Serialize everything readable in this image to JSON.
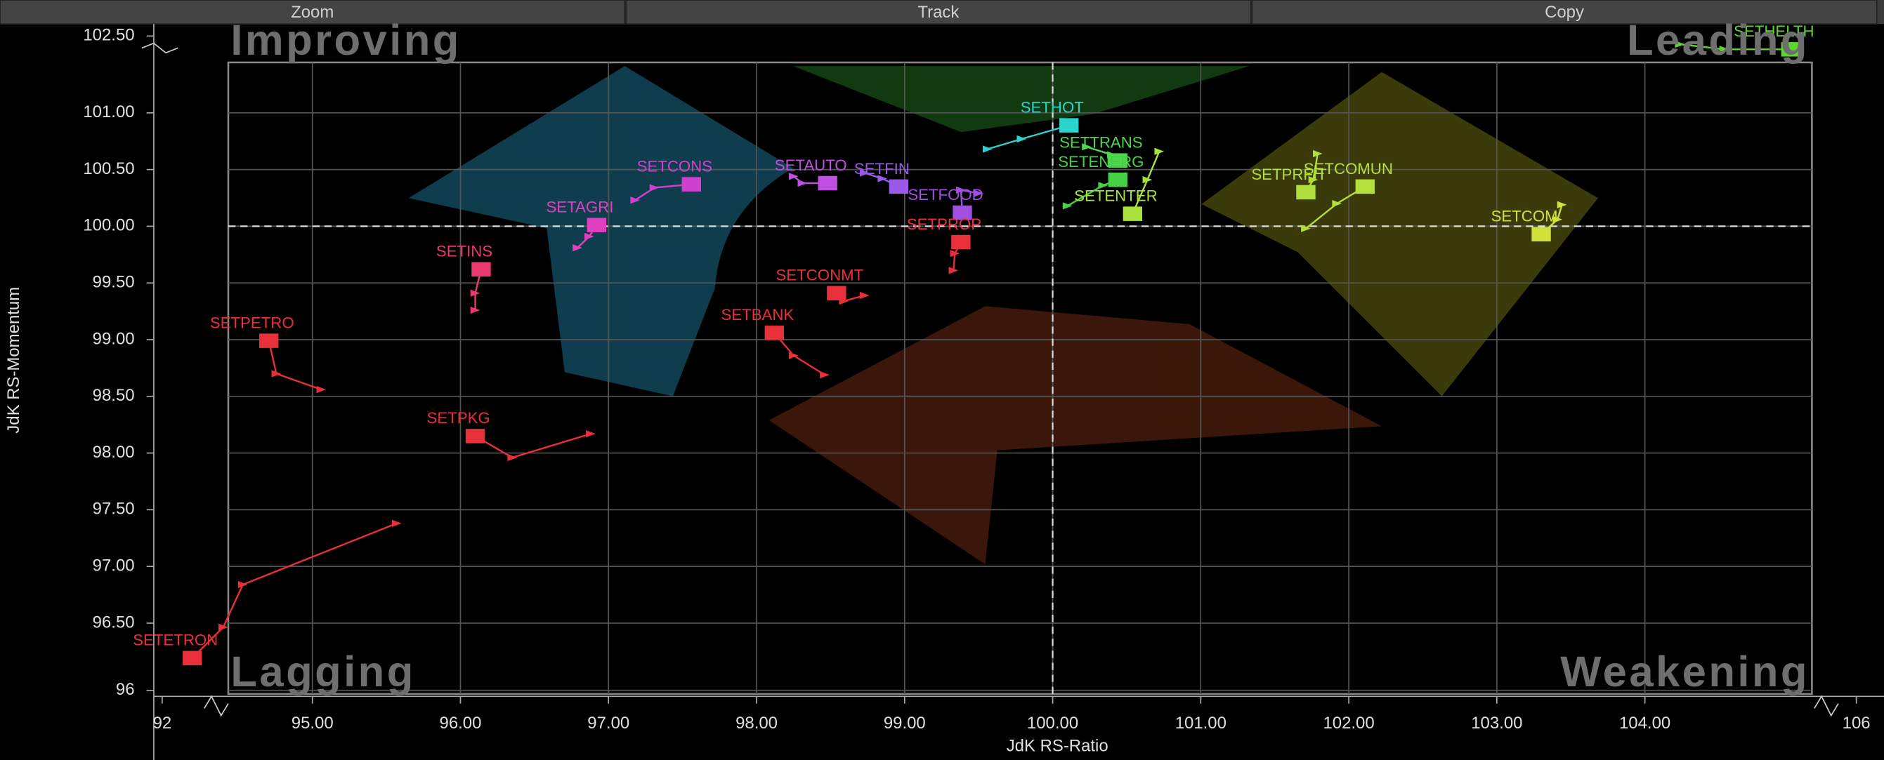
{
  "toolbar": {
    "buttons": [
      "Zoom",
      "Track",
      "Copy"
    ]
  },
  "chart_data": {
    "type": "scatter",
    "x_label": "JdK RS-Ratio",
    "y_label": "JdK RS-Momentum",
    "quadrants": {
      "top_left": "Improving",
      "top_right": "Leading",
      "bottom_left": "Lagging",
      "bottom_right": "Weakening"
    },
    "xlim": [
      92,
      106
    ],
    "xticks": [
      92,
      {
        "value": 95,
        "label": "95.00"
      },
      {
        "value": 96,
        "label": "96.00"
      },
      {
        "value": 97,
        "label": "97.00"
      },
      {
        "value": 98,
        "label": "98.00"
      },
      {
        "value": 99,
        "label": "99.00"
      },
      {
        "value": 100,
        "label": "100.00"
      },
      {
        "value": 101,
        "label": "101.00"
      },
      {
        "value": 102,
        "label": "102.00"
      },
      {
        "value": 103,
        "label": "103.00"
      },
      {
        "value": 104,
        "label": "104.00"
      },
      106
    ],
    "ylim": [
      96,
      102.5
    ],
    "yticks": [
      96,
      {
        "value": 96.5,
        "label": "96.50"
      },
      {
        "value": 97,
        "label": "97.00"
      },
      {
        "value": 97.5,
        "label": "97.50"
      },
      {
        "value": 98,
        "label": "98.00"
      },
      {
        "value": 98.5,
        "label": "98.50"
      },
      {
        "value": 99,
        "label": "99.00"
      },
      {
        "value": 99.5,
        "label": "99.50"
      },
      {
        "value": 100,
        "label": "100.00"
      },
      {
        "value": 100.5,
        "label": "100.50"
      },
      {
        "value": 101,
        "label": "101.00"
      },
      {
        "value": 102.5,
        "label": "102.50"
      }
    ],
    "grid": true,
    "reference_lines": {
      "x": 100,
      "y": 100
    },
    "series": [
      {
        "name": "SETHELTH",
        "color": "#5ed42e",
        "x": [
          104.33,
          104.75,
          105.38
        ],
        "y": [
          102.34,
          102.24,
          102.24
        ]
      },
      {
        "name": "SETHOT",
        "color": "#2ad4cc",
        "x": [
          99.56,
          99.79,
          100.11
        ],
        "y": [
          100.68,
          100.77,
          100.89
        ]
      },
      {
        "name": "SETTRANS",
        "color": "#4cd64c",
        "x": [
          100.23,
          100.4,
          100.44
        ],
        "y": [
          100.7,
          100.63,
          100.58
        ]
      },
      {
        "name": "SETENERG",
        "color": "#46d046",
        "x": [
          100.1,
          100.34,
          100.44
        ],
        "y": [
          100.18,
          100.36,
          100.41
        ]
      },
      {
        "name": "SETENTER",
        "color": "#a8e23a",
        "x": [
          100.72,
          100.64,
          100.54
        ],
        "y": [
          100.66,
          100.41,
          100.11
        ]
      },
      {
        "name": "SETCOMUN",
        "color": "#b4e03c",
        "x": [
          101.71,
          101.92,
          102.11
        ],
        "y": [
          99.98,
          100.2,
          100.35
        ]
      },
      {
        "name": "SETPRFIT",
        "color": "#b0de3c",
        "x": [
          101.79,
          101.76,
          101.71
        ],
        "y": [
          100.64,
          100.41,
          100.3
        ]
      },
      {
        "name": "SETCOM",
        "color": "#d2e03a",
        "x": [
          103.44,
          103.41,
          103.3
        ],
        "y": [
          100.19,
          100.06,
          99.93
        ]
      },
      {
        "name": "SETFOOD",
        "color": "#a050e0",
        "x": [
          99.5,
          99.38,
          99.39
        ],
        "y": [
          100.29,
          100.32,
          100.12
        ]
      },
      {
        "name": "SETFIN",
        "color": "#9a5ae8",
        "x": [
          98.73,
          98.85,
          98.96
        ],
        "y": [
          100.47,
          100.42,
          100.35
        ]
      },
      {
        "name": "SETAUTO",
        "color": "#c04ee0",
        "x": [
          98.25,
          98.31,
          98.48
        ],
        "y": [
          100.44,
          100.38,
          100.38
        ]
      },
      {
        "name": "SETCONS",
        "color": "#d040d0",
        "x": [
          97.18,
          97.31,
          97.56
        ],
        "y": [
          100.23,
          100.34,
          100.37
        ]
      },
      {
        "name": "SETAGRI",
        "color": "#e040c0",
        "x": [
          96.79,
          96.87,
          96.92
        ],
        "y": [
          99.81,
          99.91,
          100.01
        ]
      },
      {
        "name": "SETINS",
        "color": "#e83a70",
        "x": [
          96.1,
          96.1,
          96.14
        ],
        "y": [
          99.26,
          99.41,
          99.62
        ]
      },
      {
        "name": "SETPROP",
        "color": "#e8303a",
        "x": [
          99.33,
          99.34,
          99.38
        ],
        "y": [
          99.61,
          99.76,
          99.86
        ]
      },
      {
        "name": "SETCONMT",
        "color": "#e8303a",
        "x": [
          98.73,
          98.59,
          98.54
        ],
        "y": [
          99.39,
          99.34,
          99.41
        ]
      },
      {
        "name": "SETBANK",
        "color": "#e8303a",
        "x": [
          98.46,
          98.25,
          98.12
        ],
        "y": [
          98.69,
          98.86,
          99.06
        ]
      },
      {
        "name": "SETPETRO",
        "color": "#e8303a",
        "x": [
          95.06,
          94.28,
          94.13
        ],
        "y": [
          98.56,
          98.7,
          98.99
        ]
      },
      {
        "name": "SETPKG",
        "color": "#e8303a",
        "x": [
          96.88,
          96.35,
          96.1
        ],
        "y": [
          98.17,
          97.96,
          98.15
        ]
      },
      {
        "name": "SETETRON",
        "color": "#e8303a",
        "x": [
          95.57,
          93.61,
          93.22,
          92.6
        ],
        "y": [
          97.38,
          96.84,
          96.47,
          96.24
        ]
      }
    ]
  }
}
